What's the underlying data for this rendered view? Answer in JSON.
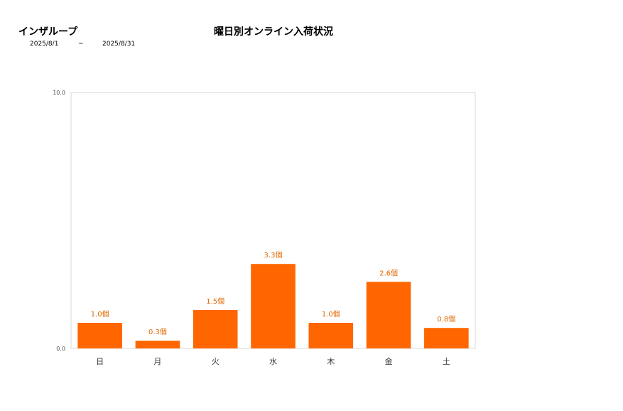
{
  "header": {
    "brand": "インザループ",
    "title": "曜日別オンライン入荷状況",
    "date_from": "2025/8/1",
    "date_sep": "~",
    "date_to": "2025/8/31"
  },
  "chart_data": {
    "type": "bar",
    "categories": [
      "日",
      "月",
      "火",
      "水",
      "木",
      "金",
      "土"
    ],
    "values": [
      1.0,
      0.3,
      1.5,
      3.3,
      1.0,
      2.6,
      0.8
    ],
    "data_labels": [
      "1.0個",
      "0.3個",
      "1.5個",
      "3.3個",
      "1.0個",
      "2.6個",
      "0.8個"
    ],
    "y_tick_labels": [
      "0.0",
      "10.0"
    ],
    "ylim": [
      0,
      10
    ],
    "bar_color": "#ff6600",
    "label_color": "#e06800",
    "grid": false
  }
}
